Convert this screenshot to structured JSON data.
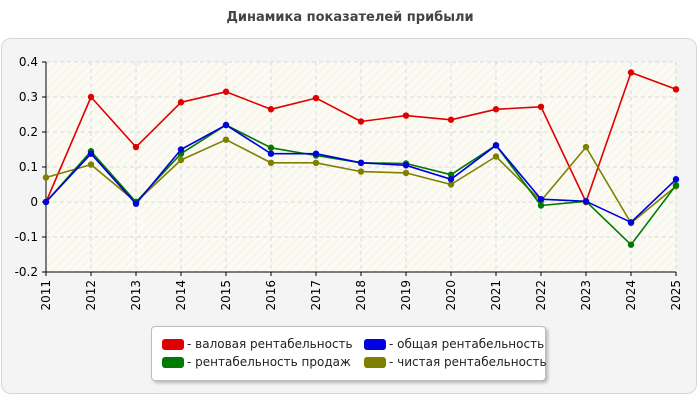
{
  "title": "Динамика показателей прибыли",
  "colors": {
    "gross": "#e00000",
    "total": "#0000e0",
    "sales": "#007a00",
    "net": "#7f7f00"
  },
  "chart_data": {
    "type": "line",
    "title": "Динамика показателей прибыли",
    "xlabel": "",
    "ylabel": "",
    "x": [
      "2011",
      "2012",
      "2013",
      "2014",
      "2015",
      "2016",
      "2017",
      "2018",
      "2019",
      "2020",
      "2021",
      "2022",
      "2023",
      "2024",
      "2025"
    ],
    "ylim": [
      -0.2,
      0.4
    ],
    "yticks": [
      -0.2,
      -0.1,
      0,
      0.1,
      0.2,
      0.3,
      0.4
    ],
    "ytick_labels": [
      "-0.2",
      "-0.1",
      "0",
      "0.1",
      "0.2",
      "0.3",
      "0.4"
    ],
    "grid": true,
    "legend_position": "bottom",
    "series": [
      {
        "name": "- валовая рентабельность",
        "color": "#e00000",
        "values": [
          0,
          0.3,
          0.157,
          0.285,
          0.315,
          0.265,
          0.297,
          0.23,
          0.247,
          0.235,
          0.265,
          0.272,
          0,
          0.37,
          0.322
        ]
      },
      {
        "name": "- рентабельность продаж",
        "color": "#007a00",
        "values": [
          0,
          0.145,
          0,
          0.138,
          0.22,
          0.155,
          0.133,
          0.112,
          0.11,
          0.078,
          0.162,
          -0.01,
          0.002,
          -0.122,
          0.048
        ]
      },
      {
        "name": "- общая рентабельность",
        "color": "#0000e0",
        "values": [
          0,
          0.138,
          -0.005,
          0.15,
          0.22,
          0.138,
          0.138,
          0.112,
          0.105,
          0.065,
          0.162,
          0.008,
          0.002,
          -0.058,
          0.065
        ]
      },
      {
        "name": "- чистая рентабельность",
        "color": "#7f7f00",
        "values": [
          0.07,
          0.107,
          0,
          0.12,
          0.178,
          0.112,
          0.112,
          0.087,
          0.083,
          0.05,
          0.13,
          0.003,
          0.157,
          -0.06,
          0.045
        ]
      }
    ]
  }
}
